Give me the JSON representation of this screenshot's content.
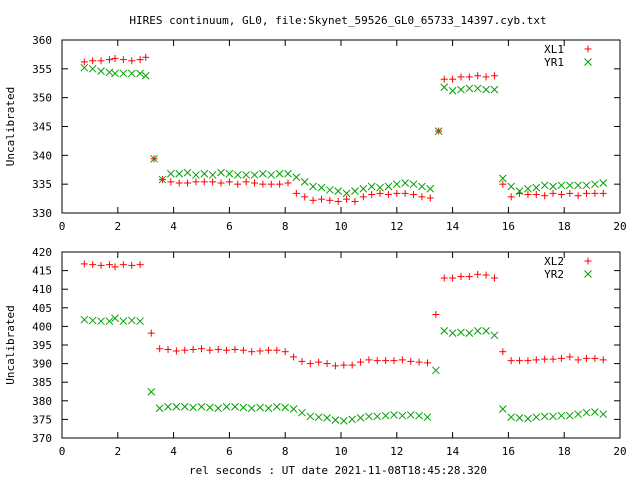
{
  "figure": {
    "title": "HIRES continuum, GL0, file:Skynet_59526_GL0_65733_14397.cyb.txt",
    "xlabel": "rel seconds : UT date 2021-11-08T18:45:28.320"
  },
  "chart_data": [
    {
      "type": "scatter",
      "ylabel": "Uncalibrated",
      "xlim": [
        0,
        20
      ],
      "ylim": [
        330,
        360
      ],
      "xticks": [
        0,
        2,
        4,
        6,
        8,
        10,
        12,
        14,
        16,
        18,
        20
      ],
      "yticks": [
        330,
        335,
        340,
        345,
        350,
        355,
        360
      ],
      "legend": "top-right",
      "series": [
        {
          "name": "XL1",
          "marker": "plus",
          "color": "#ff0000",
          "points": [
            [
              0.8,
              356.2
            ],
            [
              1.1,
              356.4
            ],
            [
              1.4,
              356.4
            ],
            [
              1.7,
              356.6
            ],
            [
              1.9,
              356.8
            ],
            [
              2.2,
              356.6
            ],
            [
              2.5,
              356.4
            ],
            [
              2.8,
              356.6
            ],
            [
              3.0,
              357.0
            ],
            [
              3.3,
              339.4
            ],
            [
              3.6,
              335.8
            ],
            [
              3.9,
              335.4
            ],
            [
              4.2,
              335.2
            ],
            [
              4.5,
              335.2
            ],
            [
              4.8,
              335.4
            ],
            [
              5.1,
              335.4
            ],
            [
              5.4,
              335.4
            ],
            [
              5.7,
              335.2
            ],
            [
              6.0,
              335.4
            ],
            [
              6.3,
              335.0
            ],
            [
              6.6,
              335.4
            ],
            [
              6.9,
              335.2
            ],
            [
              7.2,
              335.0
            ],
            [
              7.5,
              335.0
            ],
            [
              7.8,
              335.0
            ],
            [
              8.1,
              335.2
            ],
            [
              8.4,
              333.4
            ],
            [
              8.7,
              332.8
            ],
            [
              9.0,
              332.2
            ],
            [
              9.3,
              332.4
            ],
            [
              9.6,
              332.2
            ],
            [
              9.9,
              332.0
            ],
            [
              10.2,
              332.4
            ],
            [
              10.5,
              332.0
            ],
            [
              10.8,
              332.8
            ],
            [
              11.1,
              333.2
            ],
            [
              11.4,
              333.4
            ],
            [
              11.7,
              333.2
            ],
            [
              12.0,
              333.4
            ],
            [
              12.3,
              333.4
            ],
            [
              12.6,
              333.2
            ],
            [
              12.9,
              332.8
            ],
            [
              13.2,
              332.6
            ],
            [
              13.5,
              344.2
            ],
            [
              13.7,
              353.2
            ],
            [
              14.0,
              353.2
            ],
            [
              14.3,
              353.6
            ],
            [
              14.6,
              353.6
            ],
            [
              14.9,
              353.8
            ],
            [
              15.2,
              353.6
            ],
            [
              15.5,
              353.8
            ],
            [
              15.8,
              335.0
            ],
            [
              16.1,
              332.8
            ],
            [
              16.4,
              333.4
            ],
            [
              16.7,
              333.2
            ],
            [
              17.0,
              333.2
            ],
            [
              17.3,
              333.0
            ],
            [
              17.6,
              333.4
            ],
            [
              17.9,
              333.2
            ],
            [
              18.2,
              333.4
            ],
            [
              18.5,
              333.0
            ],
            [
              18.8,
              333.4
            ],
            [
              19.1,
              333.4
            ],
            [
              19.4,
              333.4
            ]
          ]
        },
        {
          "name": "YR1",
          "marker": "cross",
          "color": "#00a000",
          "points": [
            [
              0.8,
              355.2
            ],
            [
              1.1,
              355.0
            ],
            [
              1.4,
              354.6
            ],
            [
              1.7,
              354.4
            ],
            [
              1.9,
              354.2
            ],
            [
              2.2,
              354.2
            ],
            [
              2.5,
              354.2
            ],
            [
              2.8,
              354.2
            ],
            [
              3.0,
              353.8
            ],
            [
              3.3,
              339.4
            ],
            [
              3.6,
              335.8
            ],
            [
              3.9,
              336.8
            ],
            [
              4.2,
              336.8
            ],
            [
              4.5,
              337.0
            ],
            [
              4.8,
              336.6
            ],
            [
              5.1,
              336.8
            ],
            [
              5.4,
              336.6
            ],
            [
              5.7,
              337.0
            ],
            [
              6.0,
              336.8
            ],
            [
              6.3,
              336.6
            ],
            [
              6.6,
              336.6
            ],
            [
              6.9,
              336.6
            ],
            [
              7.2,
              336.8
            ],
            [
              7.5,
              336.6
            ],
            [
              7.8,
              336.8
            ],
            [
              8.1,
              336.8
            ],
            [
              8.4,
              336.2
            ],
            [
              8.7,
              335.4
            ],
            [
              9.0,
              334.6
            ],
            [
              9.3,
              334.4
            ],
            [
              9.6,
              334.0
            ],
            [
              9.9,
              333.8
            ],
            [
              10.2,
              333.4
            ],
            [
              10.5,
              333.8
            ],
            [
              10.8,
              334.2
            ],
            [
              11.1,
              334.6
            ],
            [
              11.4,
              334.4
            ],
            [
              11.7,
              334.6
            ],
            [
              12.0,
              335.0
            ],
            [
              12.3,
              335.2
            ],
            [
              12.6,
              335.0
            ],
            [
              12.9,
              334.6
            ],
            [
              13.2,
              334.2
            ],
            [
              13.5,
              344.2
            ],
            [
              13.7,
              351.8
            ],
            [
              14.0,
              351.2
            ],
            [
              14.3,
              351.4
            ],
            [
              14.6,
              351.6
            ],
            [
              14.9,
              351.6
            ],
            [
              15.2,
              351.4
            ],
            [
              15.5,
              351.4
            ],
            [
              15.8,
              336.0
            ],
            [
              16.1,
              334.6
            ],
            [
              16.4,
              333.8
            ],
            [
              16.7,
              334.2
            ],
            [
              17.0,
              334.4
            ],
            [
              17.3,
              334.8
            ],
            [
              17.6,
              334.6
            ],
            [
              17.9,
              334.8
            ],
            [
              18.2,
              334.8
            ],
            [
              18.5,
              334.8
            ],
            [
              18.8,
              334.8
            ],
            [
              19.1,
              335.0
            ],
            [
              19.4,
              335.2
            ]
          ]
        }
      ]
    },
    {
      "type": "scatter",
      "ylabel": "Uncalibrated",
      "xlim": [
        0,
        20
      ],
      "ylim": [
        370,
        420
      ],
      "xticks": [
        0,
        2,
        4,
        6,
        8,
        10,
        12,
        14,
        16,
        18,
        20
      ],
      "yticks": [
        370,
        375,
        380,
        385,
        390,
        395,
        400,
        405,
        410,
        415,
        420
      ],
      "legend": "top-right",
      "series": [
        {
          "name": "XL2",
          "marker": "plus",
          "color": "#ff0000",
          "points": [
            [
              0.8,
              416.8
            ],
            [
              1.1,
              416.6
            ],
            [
              1.4,
              416.4
            ],
            [
              1.7,
              416.6
            ],
            [
              1.9,
              416.0
            ],
            [
              2.2,
              416.6
            ],
            [
              2.5,
              416.4
            ],
            [
              2.8,
              416.6
            ],
            [
              3.2,
              398.2
            ],
            [
              3.5,
              394.0
            ],
            [
              3.8,
              393.8
            ],
            [
              4.1,
              393.4
            ],
            [
              4.4,
              393.6
            ],
            [
              4.7,
              393.8
            ],
            [
              5.0,
              394.0
            ],
            [
              5.3,
              393.6
            ],
            [
              5.6,
              393.8
            ],
            [
              5.9,
              393.6
            ],
            [
              6.2,
              393.8
            ],
            [
              6.5,
              393.6
            ],
            [
              6.8,
              393.2
            ],
            [
              7.1,
              393.4
            ],
            [
              7.4,
              393.6
            ],
            [
              7.7,
              393.6
            ],
            [
              8.0,
              393.2
            ],
            [
              8.3,
              391.8
            ],
            [
              8.6,
              390.6
            ],
            [
              8.9,
              390.0
            ],
            [
              9.2,
              390.4
            ],
            [
              9.5,
              390.0
            ],
            [
              9.8,
              389.4
            ],
            [
              10.1,
              389.6
            ],
            [
              10.4,
              389.6
            ],
            [
              10.7,
              390.4
            ],
            [
              11.0,
              391.0
            ],
            [
              11.3,
              390.8
            ],
            [
              11.6,
              390.8
            ],
            [
              11.9,
              390.8
            ],
            [
              12.2,
              391.0
            ],
            [
              12.5,
              390.6
            ],
            [
              12.8,
              390.4
            ],
            [
              13.1,
              390.2
            ],
            [
              13.4,
              403.2
            ],
            [
              13.7,
              413.0
            ],
            [
              14.0,
              413.0
            ],
            [
              14.3,
              413.4
            ],
            [
              14.6,
              413.4
            ],
            [
              14.9,
              414.0
            ],
            [
              15.2,
              413.8
            ],
            [
              15.5,
              413.0
            ],
            [
              15.8,
              393.2
            ],
            [
              16.1,
              390.8
            ],
            [
              16.4,
              390.8
            ],
            [
              16.7,
              390.8
            ],
            [
              17.0,
              391.0
            ],
            [
              17.3,
              391.2
            ],
            [
              17.6,
              391.2
            ],
            [
              17.9,
              391.4
            ],
            [
              18.2,
              391.8
            ],
            [
              18.5,
              391.0
            ],
            [
              18.8,
              391.4
            ],
            [
              19.1,
              391.4
            ],
            [
              19.4,
              391.0
            ]
          ]
        },
        {
          "name": "YR2",
          "marker": "cross",
          "color": "#00a000",
          "points": [
            [
              0.8,
              401.8
            ],
            [
              1.1,
              401.6
            ],
            [
              1.4,
              401.4
            ],
            [
              1.7,
              401.4
            ],
            [
              1.9,
              402.2
            ],
            [
              2.2,
              401.4
            ],
            [
              2.5,
              401.6
            ],
            [
              2.8,
              401.4
            ],
            [
              3.2,
              382.4
            ],
            [
              3.5,
              378.0
            ],
            [
              3.8,
              378.4
            ],
            [
              4.1,
              378.4
            ],
            [
              4.4,
              378.4
            ],
            [
              4.7,
              378.2
            ],
            [
              5.0,
              378.4
            ],
            [
              5.3,
              378.2
            ],
            [
              5.6,
              378.0
            ],
            [
              5.9,
              378.4
            ],
            [
              6.2,
              378.4
            ],
            [
              6.5,
              378.2
            ],
            [
              6.8,
              378.0
            ],
            [
              7.1,
              378.2
            ],
            [
              7.4,
              378.0
            ],
            [
              7.7,
              378.4
            ],
            [
              8.0,
              378.2
            ],
            [
              8.3,
              377.8
            ],
            [
              8.6,
              376.8
            ],
            [
              8.9,
              375.8
            ],
            [
              9.2,
              375.6
            ],
            [
              9.5,
              375.4
            ],
            [
              9.8,
              374.8
            ],
            [
              10.1,
              374.6
            ],
            [
              10.4,
              375.0
            ],
            [
              10.7,
              375.4
            ],
            [
              11.0,
              375.8
            ],
            [
              11.3,
              375.8
            ],
            [
              11.6,
              376.0
            ],
            [
              11.9,
              376.2
            ],
            [
              12.2,
              376.0
            ],
            [
              12.5,
              376.2
            ],
            [
              12.8,
              376.0
            ],
            [
              13.1,
              375.6
            ],
            [
              13.4,
              388.2
            ],
            [
              13.7,
              398.8
            ],
            [
              14.0,
              398.2
            ],
            [
              14.3,
              398.4
            ],
            [
              14.6,
              398.2
            ],
            [
              14.9,
              398.8
            ],
            [
              15.2,
              398.8
            ],
            [
              15.5,
              397.6
            ],
            [
              15.8,
              377.8
            ],
            [
              16.1,
              375.6
            ],
            [
              16.4,
              375.4
            ],
            [
              16.7,
              375.2
            ],
            [
              17.0,
              375.6
            ],
            [
              17.3,
              375.8
            ],
            [
              17.6,
              375.8
            ],
            [
              17.9,
              376.0
            ],
            [
              18.2,
              376.0
            ],
            [
              18.5,
              376.4
            ],
            [
              18.8,
              376.8
            ],
            [
              19.1,
              377.0
            ],
            [
              19.4,
              376.4
            ]
          ]
        }
      ]
    }
  ]
}
